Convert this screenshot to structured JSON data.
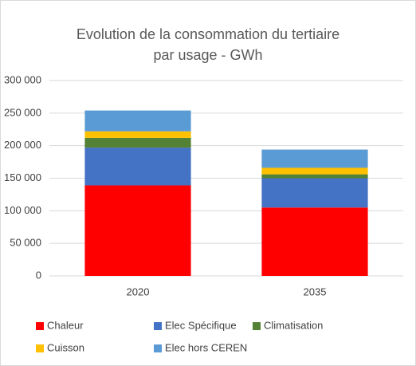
{
  "chart_data": {
    "type": "stacked_bar",
    "title": [
      "Evolution de la consommation du tertiaire",
      "par usage - GWh"
    ],
    "categories": [
      "2020",
      "2035"
    ],
    "series": [
      {
        "name": "Chaleur",
        "color": "#ff0000",
        "values": [
          139000,
          105000
        ]
      },
      {
        "name": "Elec Spécifique",
        "color": "#4472c4",
        "values": [
          58000,
          45000
        ]
      },
      {
        "name": "Climatisation",
        "color": "#548235",
        "values": [
          15000,
          6000
        ]
      },
      {
        "name": "Cuisson",
        "color": "#ffc000",
        "values": [
          10000,
          10000
        ]
      },
      {
        "name": "Elec hors CEREN",
        "color": "#5b9bd5",
        "values": [
          32000,
          28000
        ]
      }
    ],
    "ylim": [
      0,
      300000
    ],
    "yticks": [
      0,
      {
        "value": 50000,
        "label": "50 000"
      },
      {
        "value": 100000,
        "label": "100 000"
      },
      {
        "value": 150000,
        "label": "150 000"
      },
      {
        "value": 200000,
        "label": "200 000"
      },
      {
        "value": 250000,
        "label": "250 000"
      },
      {
        "value": 300000,
        "label": "300 000"
      }
    ],
    "grid": true,
    "legend": "bottom"
  }
}
